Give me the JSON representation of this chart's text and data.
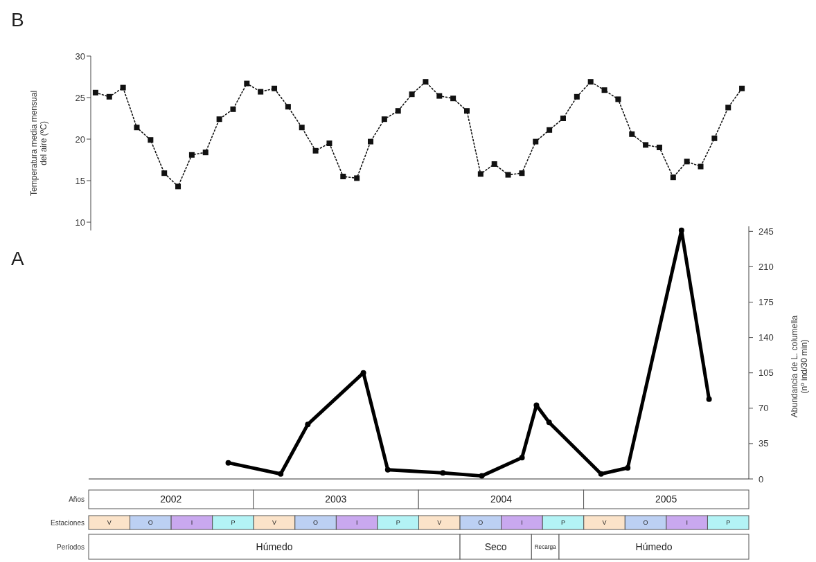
{
  "chart_data": [
    {
      "type": "line",
      "title": "B",
      "ylabel": "Temperatura media mensual del aire (ºC)",
      "ylim": [
        9,
        30
      ],
      "yticks": [
        10,
        15,
        20,
        25,
        30
      ],
      "tick_labels": "y",
      "grid": false,
      "marker": "square",
      "line_style": "dotted",
      "categories": [
        null,
        null,
        null,
        null,
        null,
        null,
        null,
        null,
        null,
        null,
        null,
        null,
        null,
        null,
        null,
        null,
        null,
        null,
        null,
        null,
        null,
        null,
        null,
        null,
        null,
        null,
        null,
        null,
        null,
        null,
        null,
        null,
        null,
        null,
        null,
        null,
        null,
        null,
        null,
        null,
        null,
        null,
        null,
        null,
        null,
        null,
        null,
        null
      ],
      "series": [
        {
          "color": "#111111",
          "values": [
            25.6,
            25.1,
            26.2,
            21.4,
            19.9,
            15.9,
            14.3,
            18.1,
            18.4,
            22.4,
            23.6,
            26.7,
            25.7,
            26.1,
            23.9,
            21.4,
            18.6,
            19.5,
            15.5,
            15.3,
            19.7,
            22.4,
            23.4,
            25.4,
            26.9,
            25.2,
            24.9,
            23.4,
            15.8,
            17.0,
            15.7,
            15.9,
            19.7,
            21.1,
            22.5,
            25.1,
            26.9,
            25.9,
            24.8,
            20.6,
            19.3,
            19.0,
            15.4,
            17.3,
            16.7,
            20.1,
            23.8,
            26.1
          ]
        }
      ]
    },
    {
      "type": "line",
      "title": "A",
      "y2label": "Abundancia de L. columella (nº ind/30 min)",
      "xlim": [
        "2002-01-01",
        "2006-01-01"
      ],
      "xticks": [
        {
          "value": "2002-07-02",
          "label": "2002"
        },
        {
          "value": "2003-07-02",
          "label": "2003"
        },
        {
          "value": "2004-07-02",
          "label": "2004"
        },
        {
          "value": "2005-07-02",
          "label": "2005"
        }
      ],
      "y2lim": [
        0,
        250
      ],
      "y2ticks": [
        0,
        35,
        70,
        105,
        140,
        175,
        210,
        245
      ],
      "grid": false,
      "marker": "circle",
      "line_style": "solid",
      "x": [
        "2002-11-06",
        "2003-03-02",
        "2003-05-01",
        "2003-09-01",
        "2003-10-25",
        "2004-02-24",
        "2004-05-20",
        "2004-08-17",
        "2004-09-18",
        "2004-10-16",
        "2005-02-08",
        "2005-04-08",
        "2005-08-05",
        "2005-10-05"
      ],
      "series": [
        {
          "color": "#000000",
          "axis": "y2",
          "values": [
            16,
            5,
            54,
            105,
            9,
            6,
            3,
            21,
            73,
            56,
            5,
            11,
            246,
            79
          ]
        }
      ]
    },
    {
      "type": "other",
      "y_categories": [
        "Años",
        "Estaciones",
        "Períodos"
      ],
      "categories": [
        "V",
        "O",
        "I",
        "P",
        "V",
        "O",
        "I",
        "P",
        "V",
        "O",
        "I",
        "P",
        "V",
        "O",
        "I",
        "P"
      ],
      "colors": [
        "#fbe3c9",
        "#bcd0f3",
        "#c9a8ef",
        "#b3f3f5",
        "#fbe3c9",
        "#bcd0f3",
        "#c9a8ef",
        "#b3f3f5",
        "#fbe3c9",
        "#bcd0f3",
        "#c9a8ef",
        "#b3f3f5",
        "#fbe3c9",
        "#bcd0f3",
        "#c9a8ef",
        "#b3f3f5"
      ],
      "annotations": [
        "Húmedo",
        "Seco",
        "Recarga",
        "Húmedo"
      ]
    }
  ]
}
